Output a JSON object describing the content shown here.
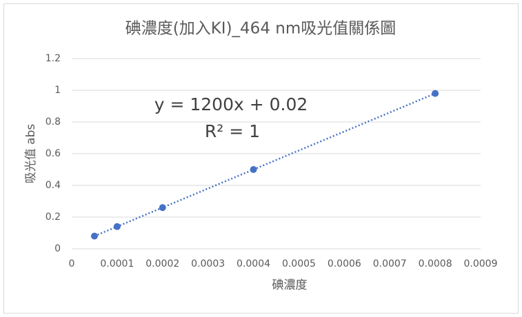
{
  "chart_data": {
    "type": "scatter",
    "title": "碘濃度(加入KI)_464 nm吸光值關係圖",
    "x_label": "碘濃度",
    "y_label": "吸光值 abs",
    "series": [
      {
        "name": "吸光值",
        "color": "#4472c4",
        "x": [
          5e-05,
          0.0001,
          0.0002,
          0.0004,
          0.0008
        ],
        "values": [
          0.08,
          0.14,
          0.26,
          0.5,
          0.98
        ]
      }
    ],
    "xlim": [
      0,
      0.0009
    ],
    "xticks": [
      0,
      0.0001,
      0.0002,
      0.0003,
      0.0004,
      0.0005,
      0.0006,
      0.0007,
      0.0008,
      0.0009
    ],
    "ylim": [
      0,
      1.2
    ],
    "yticks": [
      0,
      0.2,
      0.4,
      0.6,
      0.8,
      1,
      1.2
    ],
    "grid": true,
    "trendline": {
      "equation": "y = 1200x + 0.02",
      "r_squared": "R² = 1",
      "slope": 1200,
      "intercept": 0.02
    }
  }
}
